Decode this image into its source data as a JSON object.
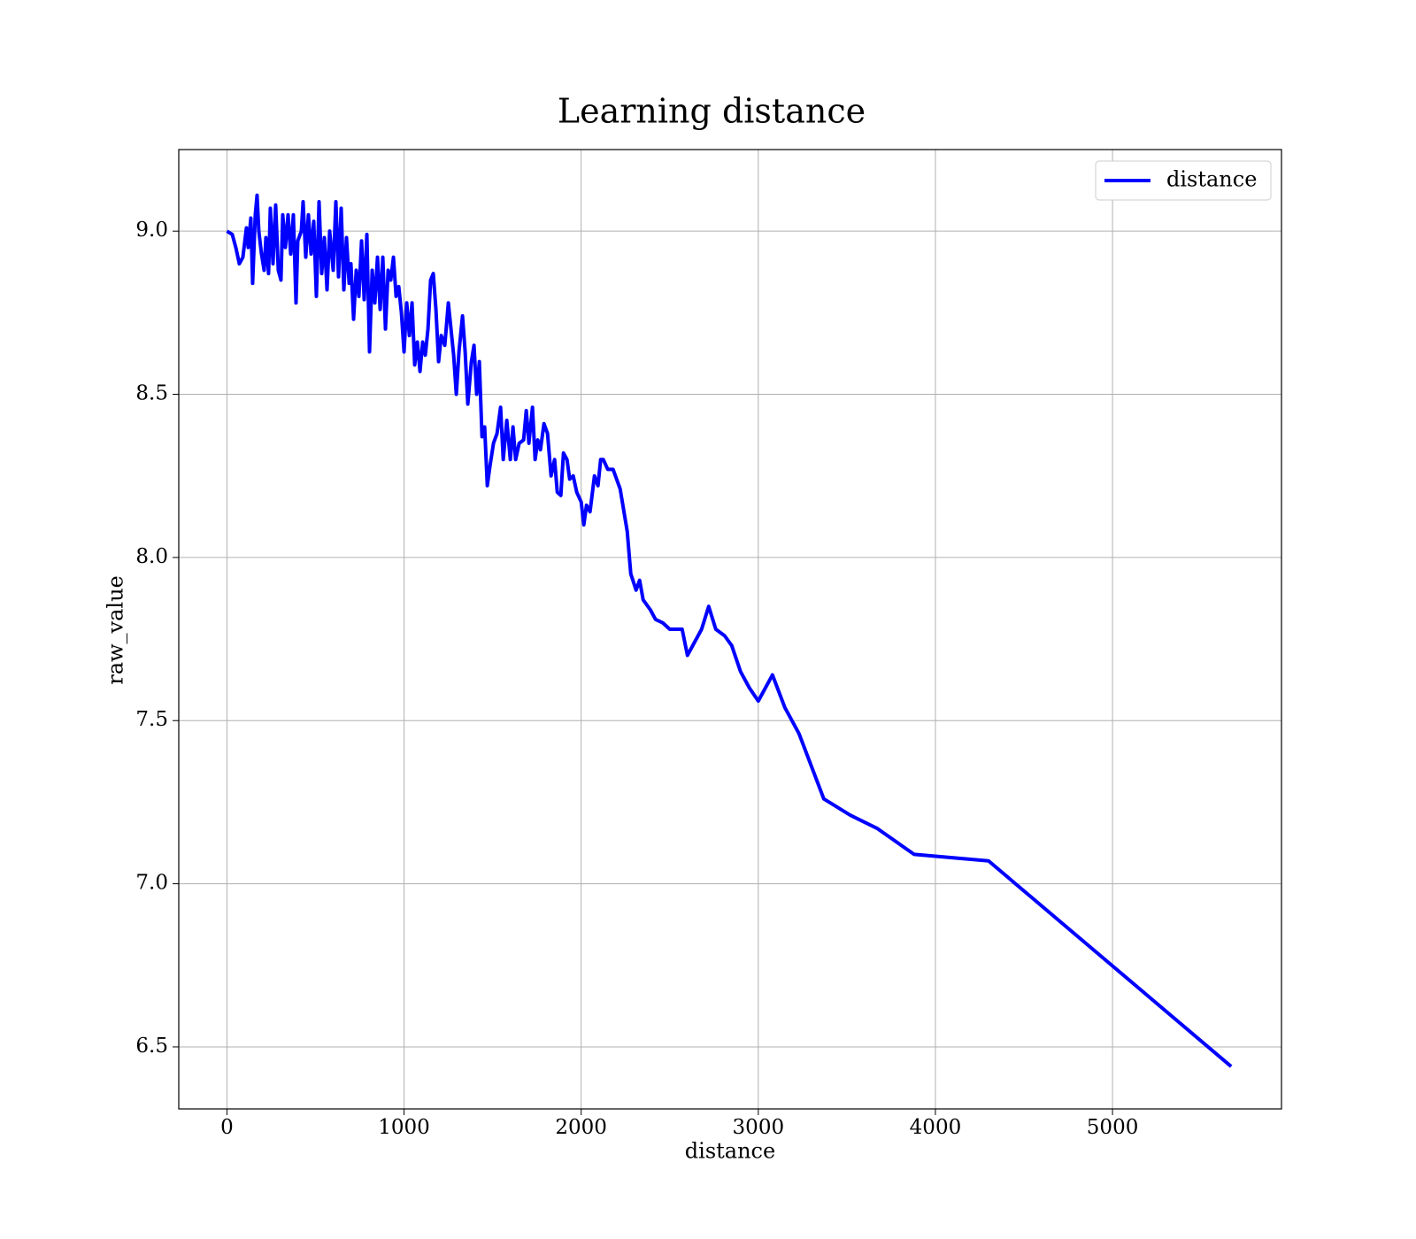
{
  "chart_data": {
    "type": "line",
    "title": "Learning distance",
    "xlabel": "distance",
    "ylabel": "raw_value",
    "xlim": [
      -272,
      5954
    ],
    "ylim": [
      6.31,
      9.25
    ],
    "xticks": [
      0,
      1000,
      2000,
      3000,
      4000,
      5000
    ],
    "yticks": [
      {
        "value": 6.5,
        "label": "6.5"
      },
      {
        "value": 7.0,
        "label": "7.0"
      },
      {
        "value": 7.5,
        "label": "7.5"
      },
      {
        "value": 8.0,
        "label": "8.0"
      },
      {
        "value": 8.5,
        "label": "8.5"
      },
      {
        "value": 9.0,
        "label": "9.0"
      }
    ],
    "grid": true,
    "legend": "upper right",
    "series": [
      {
        "name": "distance",
        "color": "#0000ff",
        "x": [
          0,
          30,
          50,
          70,
          90,
          110,
          120,
          135,
          145,
          160,
          170,
          180,
          195,
          210,
          220,
          235,
          245,
          260,
          275,
          290,
          305,
          315,
          330,
          345,
          360,
          375,
          390,
          400,
          420,
          430,
          445,
          460,
          475,
          490,
          505,
          520,
          535,
          550,
          565,
          580,
          600,
          615,
          630,
          645,
          660,
          675,
          690,
          700,
          715,
          730,
          745,
          760,
          775,
          790,
          805,
          820,
          835,
          850,
          865,
          880,
          895,
          910,
          925,
          940,
          955,
          970,
          985,
          1000,
          1015,
          1030,
          1045,
          1060,
          1075,
          1090,
          1105,
          1120,
          1135,
          1150,
          1165,
          1180,
          1195,
          1210,
          1230,
          1250,
          1265,
          1280,
          1295,
          1310,
          1330,
          1345,
          1360,
          1380,
          1395,
          1410,
          1425,
          1440,
          1455,
          1470,
          1485,
          1505,
          1525,
          1545,
          1560,
          1580,
          1600,
          1615,
          1630,
          1650,
          1675,
          1690,
          1705,
          1725,
          1740,
          1755,
          1770,
          1790,
          1810,
          1830,
          1850,
          1865,
          1885,
          1900,
          1920,
          1935,
          1955,
          1975,
          2000,
          2015,
          2030,
          2050,
          2075,
          2095,
          2110,
          2125,
          2150,
          2180,
          2220,
          2260,
          2280,
          2310,
          2330,
          2350,
          2390,
          2420,
          2460,
          2500,
          2540,
          2570,
          2600,
          2640,
          2680,
          2720,
          2760,
          2810,
          2850,
          2900,
          2950,
          3000,
          3080,
          3150,
          3230,
          3370,
          3520,
          3670,
          3880,
          4300,
          5670
        ],
        "values": [
          9.0,
          8.99,
          8.95,
          8.9,
          8.92,
          9.01,
          8.95,
          9.04,
          8.84,
          9.05,
          9.11,
          9.0,
          8.93,
          8.88,
          8.98,
          8.87,
          9.07,
          8.9,
          9.08,
          8.88,
          8.85,
          9.05,
          8.95,
          9.05,
          8.93,
          9.05,
          8.78,
          8.97,
          9.0,
          9.09,
          8.92,
          9.05,
          8.93,
          9.03,
          8.8,
          9.09,
          8.87,
          8.98,
          8.82,
          9.0,
          8.88,
          9.09,
          8.86,
          9.07,
          8.82,
          8.98,
          8.84,
          8.9,
          8.73,
          8.88,
          8.8,
          8.97,
          8.79,
          8.99,
          8.63,
          8.88,
          8.78,
          8.92,
          8.76,
          8.92,
          8.7,
          8.88,
          8.85,
          8.92,
          8.8,
          8.83,
          8.75,
          8.63,
          8.78,
          8.68,
          8.78,
          8.59,
          8.66,
          8.57,
          8.66,
          8.62,
          8.7,
          8.85,
          8.87,
          8.76,
          8.6,
          8.68,
          8.65,
          8.78,
          8.7,
          8.62,
          8.5,
          8.63,
          8.74,
          8.63,
          8.47,
          8.6,
          8.65,
          8.5,
          8.6,
          8.37,
          8.4,
          8.22,
          8.28,
          8.35,
          8.38,
          8.46,
          8.3,
          8.42,
          8.3,
          8.4,
          8.3,
          8.35,
          8.36,
          8.45,
          8.35,
          8.46,
          8.3,
          8.36,
          8.33,
          8.41,
          8.38,
          8.25,
          8.3,
          8.2,
          8.19,
          8.32,
          8.3,
          8.24,
          8.25,
          8.2,
          8.17,
          8.1,
          8.16,
          8.14,
          8.25,
          8.22,
          8.3,
          8.3,
          8.27,
          8.27,
          8.21,
          8.08,
          7.95,
          7.9,
          7.93,
          7.87,
          7.84,
          7.81,
          7.8,
          7.78,
          7.78,
          7.78,
          7.7,
          7.74,
          7.78,
          7.85,
          7.78,
          7.76,
          7.73,
          7.65,
          7.6,
          7.56,
          7.64,
          7.54,
          7.46,
          7.26,
          7.21,
          7.17,
          7.09,
          7.07,
          6.44
        ]
      }
    ]
  }
}
